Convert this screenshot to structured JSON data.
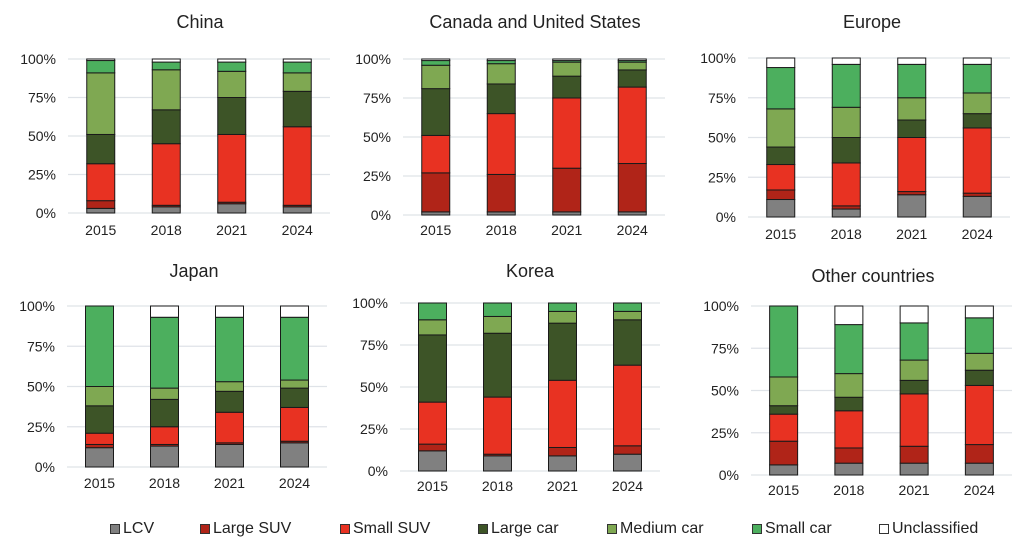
{
  "chart_data": {
    "type": "bar",
    "stacked": true,
    "normalized": true,
    "categories": [
      "2015",
      "2018",
      "2021",
      "2024"
    ],
    "yticks": [
      "0%",
      "25%",
      "50%",
      "75%",
      "100%"
    ],
    "ylim": [
      0,
      100
    ],
    "grid": true,
    "legend_position": "bottom",
    "series_names": [
      "LCV",
      "Large SUV",
      "Small SUV",
      "Large car",
      "Medium car",
      "Small car",
      "Unclassified"
    ],
    "series_colors": [
      "#808080",
      "#b02418",
      "#e83222",
      "#3d5427",
      "#7fa852",
      "#4caf5e",
      "#ffffff"
    ],
    "panels": [
      {
        "title": "China",
        "series": [
          {
            "name": "LCV",
            "values": [
              3,
              4,
              6,
              4
            ]
          },
          {
            "name": "Large SUV",
            "values": [
              5,
              1,
              1,
              1
            ]
          },
          {
            "name": "Small SUV",
            "values": [
              24,
              40,
              44,
              51
            ]
          },
          {
            "name": "Large car",
            "values": [
              19,
              22,
              24,
              23
            ]
          },
          {
            "name": "Medium car",
            "values": [
              40,
              26,
              17,
              12
            ]
          },
          {
            "name": "Small car",
            "values": [
              8,
              5,
              6,
              7
            ]
          },
          {
            "name": "Unclassified",
            "values": [
              1,
              2,
              2,
              2
            ]
          }
        ]
      },
      {
        "title": "Canada and United States",
        "series": [
          {
            "name": "LCV",
            "values": [
              2,
              2,
              2,
              2
            ]
          },
          {
            "name": "Large SUV",
            "values": [
              25,
              24,
              28,
              31
            ]
          },
          {
            "name": "Small SUV",
            "values": [
              24,
              39,
              45,
              49
            ]
          },
          {
            "name": "Large car",
            "values": [
              30,
              19,
              14,
              11
            ]
          },
          {
            "name": "Medium car",
            "values": [
              15,
              13,
              9,
              5
            ]
          },
          {
            "name": "Small car",
            "values": [
              3,
              2,
              1,
              1
            ]
          },
          {
            "name": "Unclassified",
            "values": [
              1,
              1,
              1,
              1
            ]
          }
        ]
      },
      {
        "title": "Europe",
        "series": [
          {
            "name": "LCV",
            "values": [
              11,
              5,
              14,
              13
            ]
          },
          {
            "name": "Large SUV",
            "values": [
              6,
              2,
              2,
              2
            ]
          },
          {
            "name": "Small SUV",
            "values": [
              16,
              27,
              34,
              41
            ]
          },
          {
            "name": "Large car",
            "values": [
              11,
              16,
              11,
              9
            ]
          },
          {
            "name": "Medium car",
            "values": [
              24,
              19,
              14,
              13
            ]
          },
          {
            "name": "Small car",
            "values": [
              26,
              27,
              21,
              18
            ]
          },
          {
            "name": "Unclassified",
            "values": [
              6,
              4,
              4,
              4
            ]
          }
        ]
      },
      {
        "title": "Japan",
        "series": [
          {
            "name": "LCV",
            "values": [
              12,
              13,
              14,
              15
            ]
          },
          {
            "name": "Large SUV",
            "values": [
              2,
              1,
              1,
              1
            ]
          },
          {
            "name": "Small SUV",
            "values": [
              7,
              11,
              19,
              21
            ]
          },
          {
            "name": "Large car",
            "values": [
              17,
              17,
              13,
              12
            ]
          },
          {
            "name": "Medium car",
            "values": [
              12,
              7,
              6,
              5
            ]
          },
          {
            "name": "Small car",
            "values": [
              50,
              44,
              40,
              39
            ]
          },
          {
            "name": "Unclassified",
            "values": [
              0,
              7,
              7,
              7
            ]
          }
        ]
      },
      {
        "title": "Korea",
        "series": [
          {
            "name": "LCV",
            "values": [
              12,
              9,
              9,
              10
            ]
          },
          {
            "name": "Large SUV",
            "values": [
              4,
              1,
              5,
              5
            ]
          },
          {
            "name": "Small SUV",
            "values": [
              25,
              34,
              40,
              48
            ]
          },
          {
            "name": "Large car",
            "values": [
              40,
              38,
              34,
              27
            ]
          },
          {
            "name": "Medium car",
            "values": [
              9,
              10,
              7,
              5
            ]
          },
          {
            "name": "Small car",
            "values": [
              10,
              8,
              5,
              5
            ]
          },
          {
            "name": "Unclassified",
            "values": [
              0,
              0,
              0,
              0
            ]
          }
        ]
      },
      {
        "title": "Other countries",
        "series": [
          {
            "name": "LCV",
            "values": [
              6,
              7,
              7,
              7
            ]
          },
          {
            "name": "Large SUV",
            "values": [
              14,
              9,
              10,
              11
            ]
          },
          {
            "name": "Small SUV",
            "values": [
              16,
              22,
              31,
              35
            ]
          },
          {
            "name": "Large car",
            "values": [
              5,
              8,
              8,
              9
            ]
          },
          {
            "name": "Medium car",
            "values": [
              17,
              14,
              12,
              10
            ]
          },
          {
            "name": "Small car",
            "values": [
              42,
              29,
              22,
              21
            ]
          },
          {
            "name": "Unclassified",
            "values": [
              0,
              11,
              10,
              7
            ]
          }
        ]
      }
    ]
  }
}
